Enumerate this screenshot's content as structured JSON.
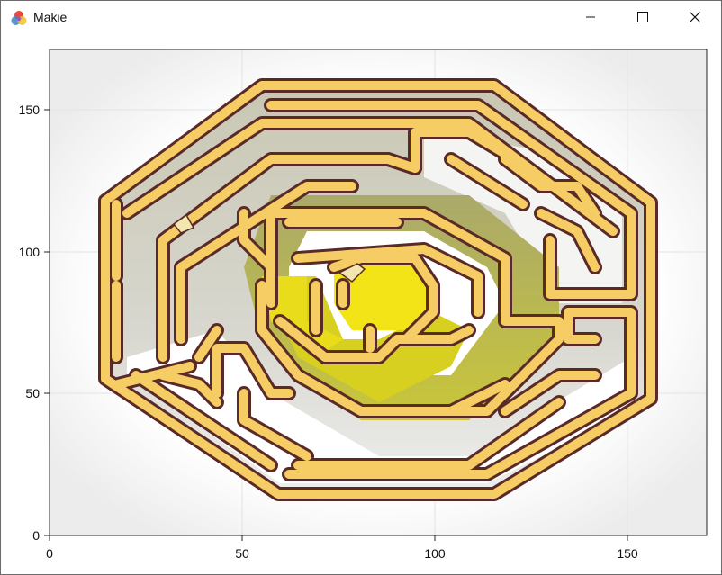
{
  "window": {
    "title": "Makie",
    "controls": [
      "minimize",
      "maximize",
      "close"
    ]
  },
  "chart_data": {
    "type": "image",
    "title": "",
    "xlabel": "",
    "ylabel": "",
    "xlim": [
      0,
      171
    ],
    "ylim": [
      0,
      171
    ],
    "xticks": [
      "0",
      "50",
      "100",
      "150"
    ],
    "yticks": [
      "0",
      "50",
      "100",
      "150"
    ],
    "grid": true,
    "content": "octagonal maze image"
  },
  "colors": {
    "wall_fill": "#f5cd64",
    "wall_outline": "#5a2a28",
    "center": "#f2e416",
    "ring_inner": "#c9c72e",
    "ring_mid": "#b6b888",
    "ring_outer": "#c8c8bc",
    "path": "#ffffff",
    "grid": "#e6e6e6"
  }
}
